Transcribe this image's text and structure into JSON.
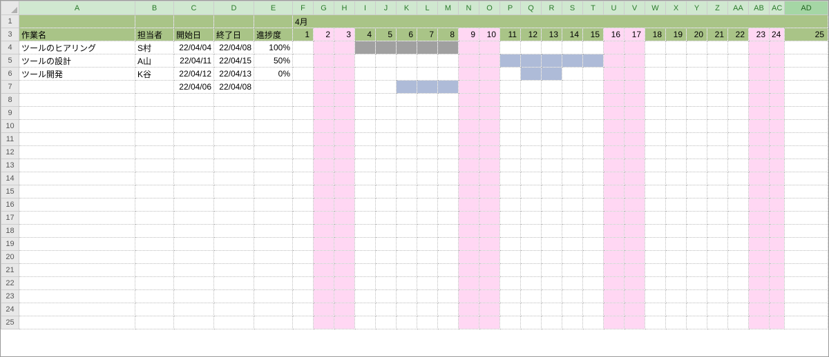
{
  "sheet": {
    "col_headers": [
      "A",
      "B",
      "C",
      "D",
      "E",
      "F",
      "G",
      "H",
      "I",
      "J",
      "K",
      "L",
      "M",
      "N",
      "O",
      "P",
      "Q",
      "R",
      "S",
      "T",
      "U",
      "V",
      "W",
      "X",
      "Y",
      "Z",
      "AA",
      "AB",
      "AC",
      "AD"
    ],
    "rows_visible": [
      "1",
      "3",
      "4",
      "5",
      "6",
      "7",
      "8",
      "9",
      "10",
      "11",
      "12",
      "13",
      "14",
      "15",
      "16",
      "17",
      "18",
      "19",
      "20",
      "21",
      "22",
      "23",
      "24",
      "25"
    ],
    "selected_col_index": 29,
    "month_label": "4月",
    "header_labels": {
      "task": "作業名",
      "person": "担当者",
      "start": "開始日",
      "end": "終了日",
      "progress": "進捗度"
    },
    "days": [
      1,
      2,
      3,
      4,
      5,
      6,
      7,
      8,
      9,
      10,
      11,
      12,
      13,
      14,
      15,
      16,
      17,
      18,
      19,
      20,
      21,
      22,
      23,
      24,
      25
    ],
    "weekend_cols": [
      1,
      2,
      8,
      9,
      15,
      16,
      22,
      23
    ],
    "tasks": [
      {
        "name": "ツールのヒアリング",
        "person": "S村",
        "start": "22/04/04",
        "end": "22/04/08",
        "progress": "100%",
        "bar_start": 3,
        "bar_end": 7,
        "bar_color": "grey"
      },
      {
        "name": "ツールの設計",
        "person": "A山",
        "start": "22/04/11",
        "end": "22/04/15",
        "progress": "50%",
        "bar_start": 10,
        "bar_end": 14,
        "bar_color": "blue"
      },
      {
        "name": "ツール開発",
        "person": "K谷",
        "start": "22/04/12",
        "end": "22/04/13",
        "progress": "0%",
        "bar_start": 11,
        "bar_end": 12,
        "bar_color": "blue"
      },
      {
        "name": "",
        "person": "",
        "start": "22/04/06",
        "end": "22/04/08",
        "progress": "",
        "bar_start": 5,
        "bar_end": 7,
        "bar_color": "blue"
      }
    ],
    "colors": {
      "header_green": "#a9c487",
      "weekend_pink": "#ffd7f3",
      "bar_grey": "#a0a0a0",
      "bar_blue": "#aebbd8",
      "grid_border": "#bbbbbb",
      "colhead_bg": "#e8e8e8"
    }
  }
}
